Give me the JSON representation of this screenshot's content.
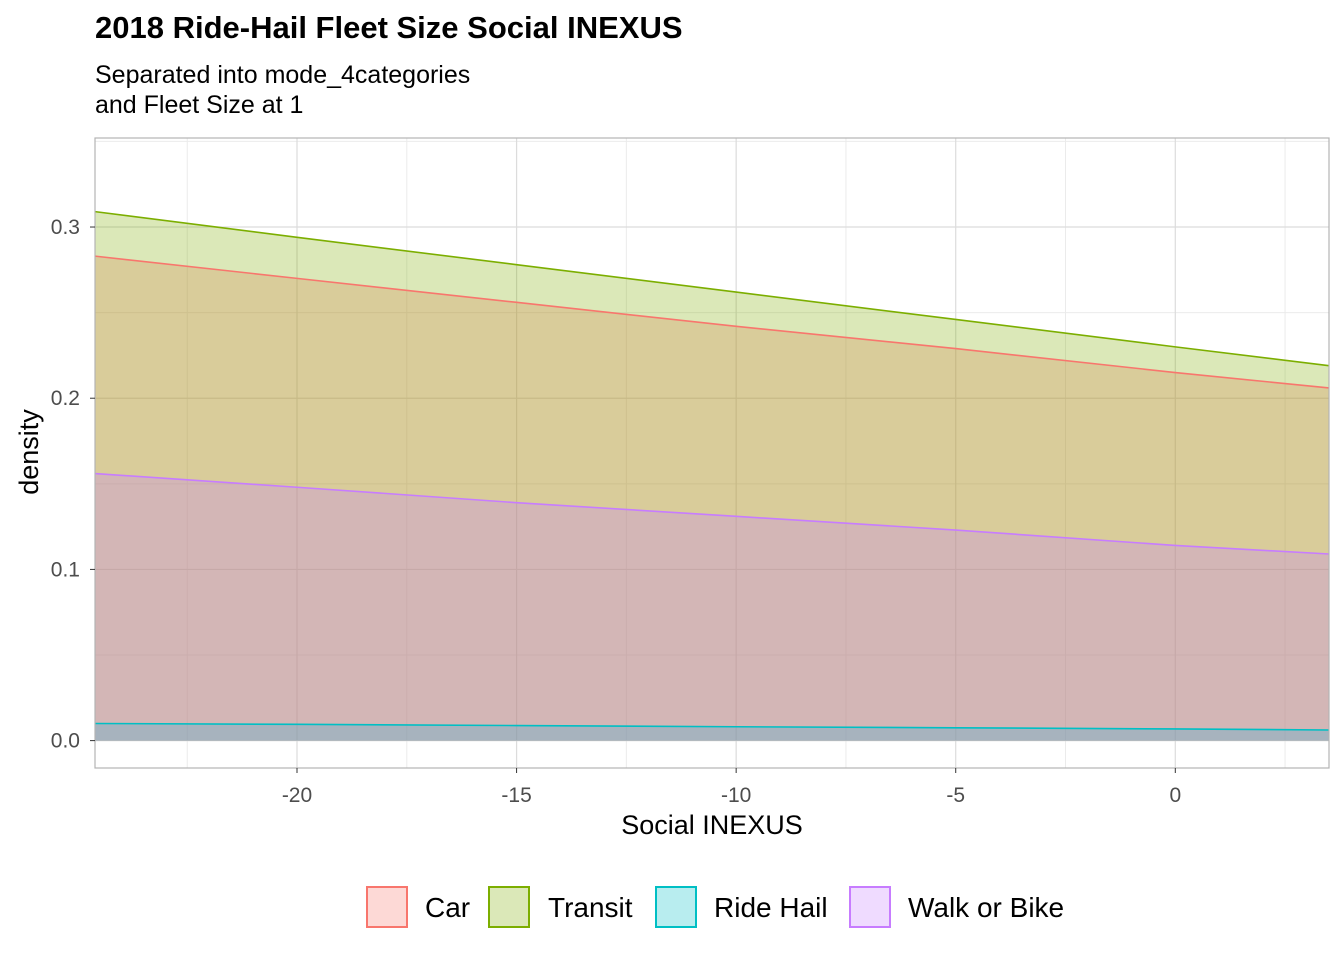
{
  "title": "2018 Ride-Hail Fleet Size Social INEXUS",
  "subtitle": [
    "Separated into mode_4categories",
    "and Fleet Size at 1"
  ],
  "chart_data": {
    "type": "area",
    "xlabel": "Social INEXUS",
    "ylabel": "density",
    "xlim": [
      -24.6,
      3.5
    ],
    "ylim": [
      -0.016,
      0.352
    ],
    "x_ticks": [
      -20,
      -15,
      -10,
      -5,
      0
    ],
    "y_ticks": [
      0.0,
      0.1,
      0.2,
      0.3
    ],
    "x_tick_labels": [
      "-20",
      "-15",
      "-10",
      "-5",
      "0"
    ],
    "y_tick_labels": [
      "0.0",
      "0.1",
      "0.2",
      "0.3"
    ],
    "grid": true,
    "legend": {
      "position": "bottom"
    },
    "x": [
      -24.6,
      -20,
      -15,
      -10,
      -5,
      0,
      3.5
    ],
    "series": [
      {
        "name": "Car",
        "color": "#F8766D",
        "values": [
          0.283,
          0.27,
          0.256,
          0.242,
          0.229,
          0.215,
          0.206
        ]
      },
      {
        "name": "Transit",
        "color": "#7CAE00",
        "values": [
          0.309,
          0.294,
          0.278,
          0.262,
          0.246,
          0.23,
          0.219
        ]
      },
      {
        "name": "Ride Hail",
        "color": "#00BFC4",
        "values": [
          0.01,
          0.0095,
          0.0088,
          0.0081,
          0.0075,
          0.0068,
          0.0062
        ]
      },
      {
        "name": "Walk or Bike",
        "color": "#C77CFF",
        "values": [
          0.156,
          0.148,
          0.139,
          0.131,
          0.123,
          0.114,
          0.109
        ]
      }
    ]
  }
}
